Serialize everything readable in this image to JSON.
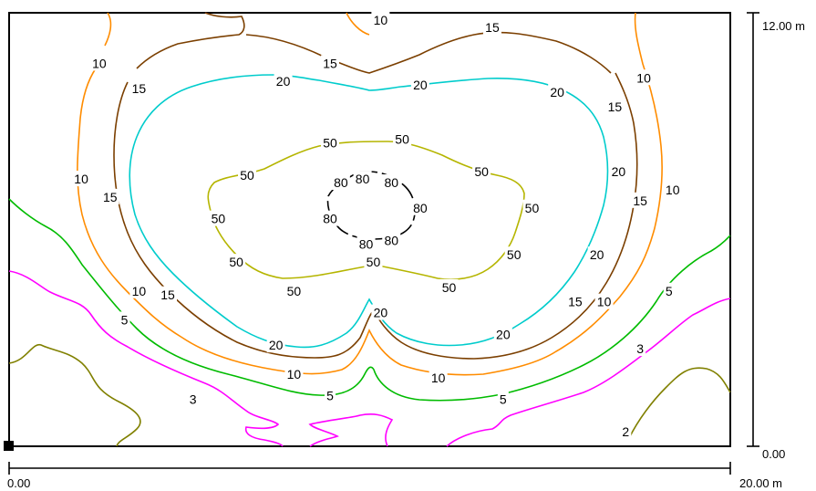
{
  "chart_data": {
    "type": "contour",
    "title": "",
    "x_axis": {
      "start_label": "0.00",
      "end_label": "20.00 m",
      "range": [
        0,
        20
      ],
      "unit": "m"
    },
    "y_axis": {
      "start_label": "0.00",
      "end_label": "12.00 m",
      "range": [
        0,
        12
      ],
      "unit": "m"
    },
    "levels": [
      {
        "value": 2,
        "color": "#808000"
      },
      {
        "value": 3,
        "color": "#ff00ff"
      },
      {
        "value": 5,
        "color": "#00bb00"
      },
      {
        "value": 10,
        "color": "#ff8c00"
      },
      {
        "value": 15,
        "color": "#7b3f00"
      },
      {
        "value": 20,
        "color": "#00cccc"
      },
      {
        "value": 50,
        "color": "#b5b500"
      },
      {
        "value": 80,
        "color": "#000000"
      }
    ],
    "contour_labels": [
      {
        "text": "10",
        "x": 10.3,
        "y": 11.8
      },
      {
        "text": "15",
        "x": 13.4,
        "y": 11.6
      },
      {
        "text": "15",
        "x": 8.9,
        "y": 10.6
      },
      {
        "text": "10",
        "x": 2.5,
        "y": 10.6
      },
      {
        "text": "10",
        "x": 17.6,
        "y": 10.2
      },
      {
        "text": "15",
        "x": 3.6,
        "y": 9.9
      },
      {
        "text": "20",
        "x": 7.6,
        "y": 10.1
      },
      {
        "text": "20",
        "x": 11.4,
        "y": 10.0
      },
      {
        "text": "20",
        "x": 15.2,
        "y": 9.8
      },
      {
        "text": "15",
        "x": 16.8,
        "y": 9.4
      },
      {
        "text": "50",
        "x": 8.9,
        "y": 8.4
      },
      {
        "text": "50",
        "x": 10.9,
        "y": 8.5
      },
      {
        "text": "50",
        "x": 6.6,
        "y": 7.5
      },
      {
        "text": "50",
        "x": 13.1,
        "y": 7.6
      },
      {
        "text": "20",
        "x": 16.9,
        "y": 7.6
      },
      {
        "text": "10",
        "x": 2.0,
        "y": 7.4
      },
      {
        "text": "80",
        "x": 9.2,
        "y": 7.3
      },
      {
        "text": "80",
        "x": 9.8,
        "y": 7.4
      },
      {
        "text": "80",
        "x": 10.6,
        "y": 7.3
      },
      {
        "text": "10",
        "x": 18.4,
        "y": 7.1
      },
      {
        "text": "15",
        "x": 2.8,
        "y": 6.9
      },
      {
        "text": "15",
        "x": 17.5,
        "y": 6.8
      },
      {
        "text": "80",
        "x": 11.4,
        "y": 6.6
      },
      {
        "text": "50",
        "x": 14.5,
        "y": 6.6
      },
      {
        "text": "80",
        "x": 8.9,
        "y": 6.3
      },
      {
        "text": "50",
        "x": 5.8,
        "y": 6.3
      },
      {
        "text": "80",
        "x": 9.9,
        "y": 5.6
      },
      {
        "text": "80",
        "x": 10.6,
        "y": 5.7
      },
      {
        "text": "50",
        "x": 14.0,
        "y": 5.3
      },
      {
        "text": "20",
        "x": 16.3,
        "y": 5.3
      },
      {
        "text": "50",
        "x": 6.3,
        "y": 5.1
      },
      {
        "text": "50",
        "x": 10.1,
        "y": 5.1
      },
      {
        "text": "50",
        "x": 7.9,
        "y": 4.3
      },
      {
        "text": "50",
        "x": 12.2,
        "y": 4.4
      },
      {
        "text": "10",
        "x": 3.6,
        "y": 4.3
      },
      {
        "text": "15",
        "x": 4.4,
        "y": 4.2
      },
      {
        "text": "15",
        "x": 15.7,
        "y": 4.0
      },
      {
        "text": "10",
        "x": 16.5,
        "y": 4.0
      },
      {
        "text": "5",
        "x": 18.3,
        "y": 4.3
      },
      {
        "text": "5",
        "x": 3.2,
        "y": 3.5
      },
      {
        "text": "20",
        "x": 10.3,
        "y": 3.7
      },
      {
        "text": "20",
        "x": 13.7,
        "y": 3.1
      },
      {
        "text": "20",
        "x": 7.4,
        "y": 2.8
      },
      {
        "text": "3",
        "x": 17.5,
        "y": 2.7
      },
      {
        "text": "10",
        "x": 7.9,
        "y": 2.0
      },
      {
        "text": "10",
        "x": 11.9,
        "y": 1.9
      },
      {
        "text": "5",
        "x": 8.9,
        "y": 1.4
      },
      {
        "text": "5",
        "x": 13.7,
        "y": 1.3
      },
      {
        "text": "3",
        "x": 5.1,
        "y": 1.3
      },
      {
        "text": "2",
        "x": 17.1,
        "y": 0.4
      }
    ],
    "grid": false,
    "legend": "none"
  }
}
